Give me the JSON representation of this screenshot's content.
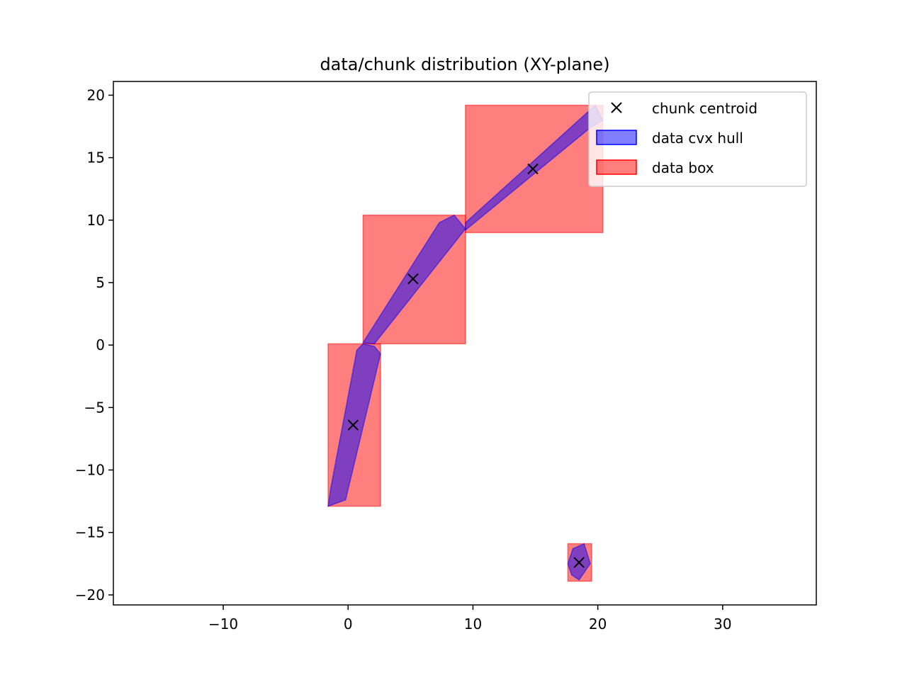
{
  "chart_data": {
    "type": "scatter",
    "title": "data/chunk distribution (XY-plane)",
    "xlabel": "",
    "ylabel": "",
    "xlim": [
      -18.8,
      37.5
    ],
    "ylim": [
      -20.8,
      21.1
    ],
    "x_ticks": [
      -10,
      0,
      10,
      20,
      30
    ],
    "y_ticks": [
      20,
      15,
      10,
      5,
      0,
      -5,
      -10,
      -15,
      -20
    ],
    "x_tick_labels": [
      "−10",
      "0",
      "10",
      "20",
      "30"
    ],
    "y_tick_labels": [
      "20",
      "15",
      "10",
      "5",
      "0",
      "−5",
      "−10",
      "−15",
      "−20"
    ],
    "grid": false,
    "legend": {
      "position": "top-right",
      "entries": [
        "chunk centroid",
        "data cvx hull",
        "data box"
      ]
    },
    "colors": {
      "box_fill": "#ff0000",
      "hull_fill": "#0000ff",
      "centroid_marker": "#000000"
    },
    "data_boxes": [
      {
        "x0": -1.6,
        "x1": 2.6,
        "y0": -12.9,
        "y1": 0.1
      },
      {
        "x0": 1.2,
        "x1": 9.4,
        "y0": 0.1,
        "y1": 10.4
      },
      {
        "x0": 9.4,
        "x1": 20.4,
        "y0": 9.0,
        "y1": 19.2
      },
      {
        "x0": 17.6,
        "x1": 19.5,
        "y0": -18.9,
        "y1": -15.9
      }
    ],
    "hulls": [
      [
        [
          -1.6,
          -12.9
        ],
        [
          -0.2,
          -12.4
        ],
        [
          2.6,
          -0.7
        ],
        [
          2.1,
          -0.1
        ],
        [
          1.2,
          0.1
        ],
        [
          0.7,
          -0.4
        ],
        [
          -1.4,
          -11.5
        ]
      ],
      [
        [
          1.2,
          0.2
        ],
        [
          2.1,
          0.1
        ],
        [
          9.4,
          9.3
        ],
        [
          8.5,
          10.4
        ],
        [
          7.3,
          9.8
        ]
      ],
      [
        [
          9.4,
          9.2
        ],
        [
          19.4,
          17.4
        ],
        [
          20.4,
          18.0
        ],
        [
          19.8,
          19.2
        ],
        [
          9.4,
          9.8
        ]
      ],
      [
        [
          18.5,
          -18.8
        ],
        [
          19.4,
          -17.5
        ],
        [
          18.9,
          -15.9
        ],
        [
          18.0,
          -16.3
        ],
        [
          17.6,
          -17.5
        ],
        [
          17.9,
          -18.4
        ]
      ]
    ],
    "centroids": [
      {
        "x": 0.4,
        "y": -6.4
      },
      {
        "x": 5.2,
        "y": 5.3
      },
      {
        "x": 14.8,
        "y": 14.1
      },
      {
        "x": 18.5,
        "y": -17.4
      }
    ]
  }
}
